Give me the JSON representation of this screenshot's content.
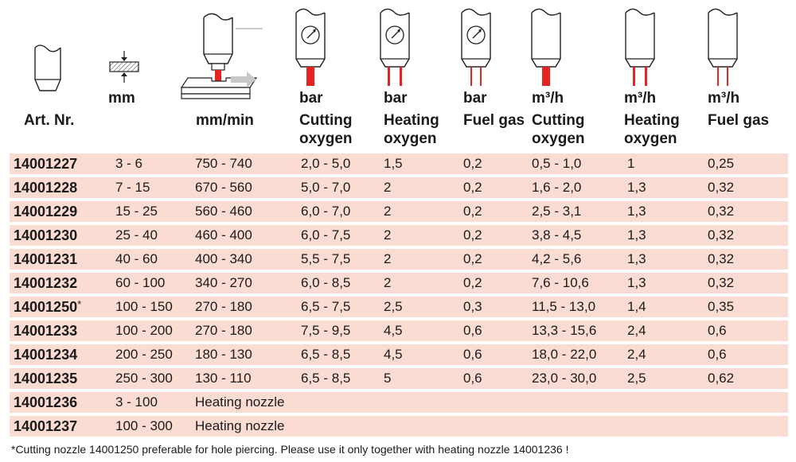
{
  "header": {
    "col_art": "Art. Nr.",
    "col_thickness_unit": "mm",
    "col_speed_unit": "mm/min",
    "units": [
      "bar",
      "bar",
      "bar",
      "m³/h",
      "m³/h",
      "m³/h"
    ],
    "labels_line1": [
      "Cutting",
      "Heating",
      "Fuel gas",
      "Cutting",
      "Heating",
      "Fuel gas"
    ],
    "labels_line2": [
      "oxygen",
      "oxygen",
      "",
      "oxygen",
      "oxygen",
      ""
    ]
  },
  "rows": [
    {
      "art": "14001227",
      "mark": "",
      "thickness": "3 - 6",
      "speed": "750 - 740",
      "cut_bar": "2,0 - 5,0",
      "heat_bar": "1,5",
      "fuel_bar": "0,2",
      "cut_m3": "0,5 - 1,0",
      "heat_m3": "1",
      "fuel_m3": "0,25"
    },
    {
      "art": "14001228",
      "mark": "",
      "thickness": "7 - 15",
      "speed": "670 - 560",
      "cut_bar": "5,0 - 7,0",
      "heat_bar": "2",
      "fuel_bar": "0,2",
      "cut_m3": "1,6 - 2,0",
      "heat_m3": "1,3",
      "fuel_m3": "0,32"
    },
    {
      "art": "14001229",
      "mark": "",
      "thickness": "15 - 25",
      "speed": "560 - 460",
      "cut_bar": "6,0 - 7,0",
      "heat_bar": "2",
      "fuel_bar": "0,2",
      "cut_m3": "2,5 - 3,1",
      "heat_m3": "1,3",
      "fuel_m3": "0,32"
    },
    {
      "art": "14001230",
      "mark": "",
      "thickness": "25 - 40",
      "speed": "460 - 400",
      "cut_bar": "6,0 - 7,5",
      "heat_bar": "2",
      "fuel_bar": "0,2",
      "cut_m3": "3,8 - 4,5",
      "heat_m3": "1,3",
      "fuel_m3": "0,32"
    },
    {
      "art": "14001231",
      "mark": "",
      "thickness": "40 - 60",
      "speed": "400 - 340",
      "cut_bar": "5,5 - 7,5",
      "heat_bar": "2",
      "fuel_bar": "0,2",
      "cut_m3": "4,2 - 5,6",
      "heat_m3": "1,3",
      "fuel_m3": "0,32"
    },
    {
      "art": "14001232",
      "mark": "",
      "thickness": "60 - 100",
      "speed": "340 - 270",
      "cut_bar": "6,0 - 8,5",
      "heat_bar": "2",
      "fuel_bar": "0,2",
      "cut_m3": "7,6 - 10,6",
      "heat_m3": "1,3",
      "fuel_m3": "0,32"
    },
    {
      "art": "14001250",
      "mark": "*",
      "thickness": "100 - 150",
      "speed": "270 - 180",
      "cut_bar": "6,5 - 7,5",
      "heat_bar": "2,5",
      "fuel_bar": "0,3",
      "cut_m3": "11,5 - 13,0",
      "heat_m3": "1,4",
      "fuel_m3": "0,35"
    },
    {
      "art": "14001233",
      "mark": "",
      "thickness": "100 - 200",
      "speed": "270 - 180",
      "cut_bar": "7,5 - 9,5",
      "heat_bar": "4,5",
      "fuel_bar": "0,6",
      "cut_m3": "13,3 - 15,6",
      "heat_m3": "2,4",
      "fuel_m3": "0,6"
    },
    {
      "art": "14001234",
      "mark": "",
      "thickness": "200 - 250",
      "speed": "180 - 130",
      "cut_bar": "6,5 - 8,5",
      "heat_bar": "4,5",
      "fuel_bar": "0,6",
      "cut_m3": "18,0 - 22,0",
      "heat_m3": "2,4",
      "fuel_m3": "0,6"
    },
    {
      "art": "14001235",
      "mark": "",
      "thickness": "250 - 300",
      "speed": "130 - 110",
      "cut_bar": "6,5 - 8,5",
      "heat_bar": "5",
      "fuel_bar": "0,6",
      "cut_m3": "23,0 - 30,0",
      "heat_m3": "2,5",
      "fuel_m3": "0,62"
    },
    {
      "art": "14001236",
      "mark": "",
      "thickness": "3 - 100",
      "speed": "Heating nozzle",
      "cut_bar": "",
      "heat_bar": "",
      "fuel_bar": "",
      "cut_m3": "",
      "heat_m3": "",
      "fuel_m3": ""
    },
    {
      "art": "14001237",
      "mark": "",
      "thickness": "100 - 300",
      "speed": "Heating nozzle",
      "cut_bar": "",
      "heat_bar": "",
      "fuel_bar": "",
      "cut_m3": "",
      "heat_m3": "",
      "fuel_m3": ""
    }
  ],
  "footnote": "*Cutting nozzle 14001250 preferable for hole piercing. Please use it only together with heating nozzle 14001236 !",
  "colors": {
    "row_bg": "#fbdcd3",
    "accent_red": "#e52320",
    "text": "#1a1a1a"
  },
  "icons": [
    "nozzle-icon",
    "material-thickness-icon",
    "cutting-machine-icon",
    "pressure-gauge-icon",
    "flow-nozzle-icon"
  ]
}
